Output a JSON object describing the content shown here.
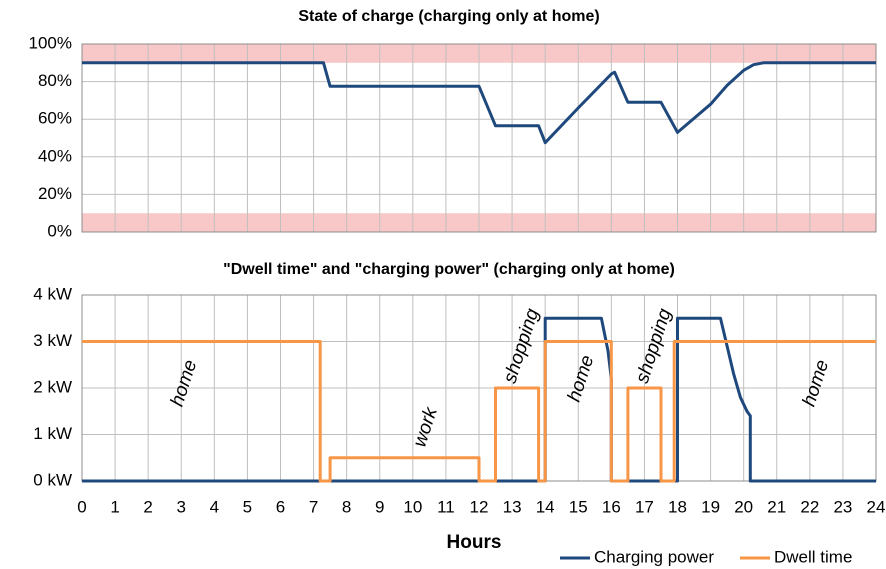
{
  "chart_data": [
    {
      "type": "line",
      "title": "State of charge (charging only at home)",
      "xlim": [
        0,
        24
      ],
      "xticks": [
        0,
        1,
        2,
        3,
        4,
        5,
        6,
        7,
        8,
        9,
        10,
        11,
        12,
        13,
        14,
        15,
        16,
        17,
        18,
        19,
        20,
        21,
        22,
        23,
        24
      ],
      "ylim": [
        0,
        100
      ],
      "yticks": [
        {
          "value": 0,
          "label": "0%"
        },
        {
          "value": 20,
          "label": "20%"
        },
        {
          "value": 40,
          "label": "40%"
        },
        {
          "value": 60,
          "label": "60%"
        },
        {
          "value": 80,
          "label": "80%"
        },
        {
          "value": 100,
          "label": "100%"
        }
      ],
      "grid": true,
      "bands": [
        [
          0,
          10
        ],
        [
          90,
          100
        ]
      ],
      "band_color": "#f8c8c8",
      "series": [
        {
          "color": "#1f497d",
          "x": [
            0,
            7.3,
            7.5,
            12,
            12.5,
            13.8,
            14,
            15,
            16,
            16.1,
            16.5,
            17.5,
            18,
            19,
            19.5,
            20,
            20.3,
            20.6,
            24
          ],
          "values": [
            90,
            90,
            77.5,
            77.5,
            56.5,
            56.5,
            47.5,
            66,
            84,
            85,
            69,
            69,
            53,
            68,
            78,
            86,
            89,
            90,
            90
          ]
        }
      ]
    },
    {
      "type": "line",
      "title": "\"Dwell time\" and \"charging power\" (charging only at home)",
      "x_label": "Hours",
      "xlim": [
        0,
        24
      ],
      "xticks": [
        0,
        1,
        2,
        3,
        4,
        5,
        6,
        7,
        8,
        9,
        10,
        11,
        12,
        13,
        14,
        15,
        16,
        17,
        18,
        19,
        20,
        21,
        22,
        23,
        24
      ],
      "ylim": [
        0,
        4
      ],
      "yticks": [
        {
          "value": 0,
          "label": "0 kW"
        },
        {
          "value": 1,
          "label": "1 kW"
        },
        {
          "value": 2,
          "label": "2 kW"
        },
        {
          "value": 3,
          "label": "3 kW"
        },
        {
          "value": 4,
          "label": "4 kW"
        }
      ],
      "grid": true,
      "legend": "bottom right",
      "series": [
        {
          "name": "Charging power",
          "color": "#1f497d",
          "x": [
            0,
            14,
            14,
            15.7,
            15.9,
            16,
            16,
            18,
            18,
            19.3,
            19.5,
            19.7,
            19.9,
            20.1,
            20.2,
            20.2,
            24
          ],
          "values": [
            0,
            0,
            3.5,
            3.5,
            2.8,
            2.2,
            0,
            0,
            3.5,
            3.5,
            2.9,
            2.3,
            1.8,
            1.5,
            1.4,
            0,
            0
          ]
        },
        {
          "name": "Dwell time",
          "color": "#f79646",
          "x": [
            0,
            7.2,
            7.2,
            7.5,
            7.5,
            12,
            12,
            12.5,
            12.5,
            13.8,
            13.8,
            14,
            14,
            16,
            16,
            16.5,
            16.5,
            17.5,
            17.5,
            17.9,
            17.9,
            24
          ],
          "values": [
            3,
            3,
            0,
            0,
            0.5,
            0.5,
            0,
            0,
            2,
            2,
            0,
            0,
            3,
            3,
            0,
            0,
            2,
            2,
            0,
            0,
            3,
            3
          ]
        }
      ],
      "annotations": [
        {
          "text": "home",
          "x": 3.1,
          "y": 2.1
        },
        {
          "text": "work",
          "x": 10.4,
          "y": 1.15
        },
        {
          "text": "shopping",
          "x": 13.3,
          "y": 2.9
        },
        {
          "text": "home",
          "x": 15.1,
          "y": 2.2
        },
        {
          "text": "shopping",
          "x": 17.3,
          "y": 2.9
        },
        {
          "text": "home",
          "x": 22.2,
          "y": 2.1
        }
      ]
    }
  ]
}
